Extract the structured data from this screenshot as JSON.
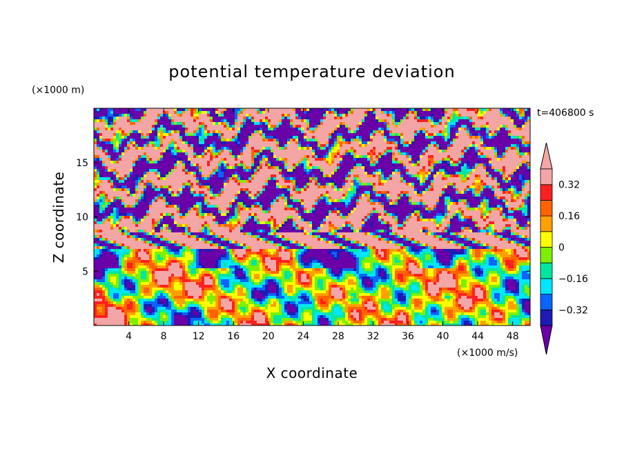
{
  "chart_data": {
    "type": "heatmap",
    "title": "potential temperature deviation",
    "xlabel": "X coordinate",
    "ylabel": "Z coordinate",
    "x_unit": "(×1000 m/s)",
    "y_unit": "(×1000 m)",
    "time_label": "t=406800 s",
    "xlim": [
      0,
      50
    ],
    "ylim": [
      0,
      20
    ],
    "x_ticks": [
      4,
      8,
      12,
      16,
      20,
      24,
      28,
      32,
      36,
      40,
      44,
      48
    ],
    "x_tick_labels": [
      "4",
      "8",
      "12",
      "16",
      "20",
      "24",
      "28",
      "32",
      "36",
      "40",
      "44",
      "48"
    ],
    "y_ticks": [
      5,
      10,
      15
    ],
    "y_tick_labels": [
      "5",
      "10",
      "15"
    ],
    "colorbar": {
      "levels": [
        -0.4,
        -0.32,
        -0.24,
        -0.16,
        -0.08,
        0,
        0.08,
        0.16,
        0.24,
        0.32,
        0.4
      ],
      "tick_values": [
        0.32,
        0.16,
        0,
        -0.16,
        -0.32
      ],
      "tick_labels": [
        "0.32",
        "0.16",
        "0",
        "−0.16",
        "−0.32"
      ],
      "colors": [
        "#6a00a8",
        "#1c1cb4",
        "#0a64ff",
        "#00e6ff",
        "#00e6a0",
        "#7cf000",
        "#ffff00",
        "#ffa000",
        "#ff6400",
        "#ff2020",
        "#f4a6a6"
      ],
      "extend": "both"
    },
    "field_description": "alternating warm (pink) and cold (purple) layers above z≈7, mixed turbulent field below"
  }
}
